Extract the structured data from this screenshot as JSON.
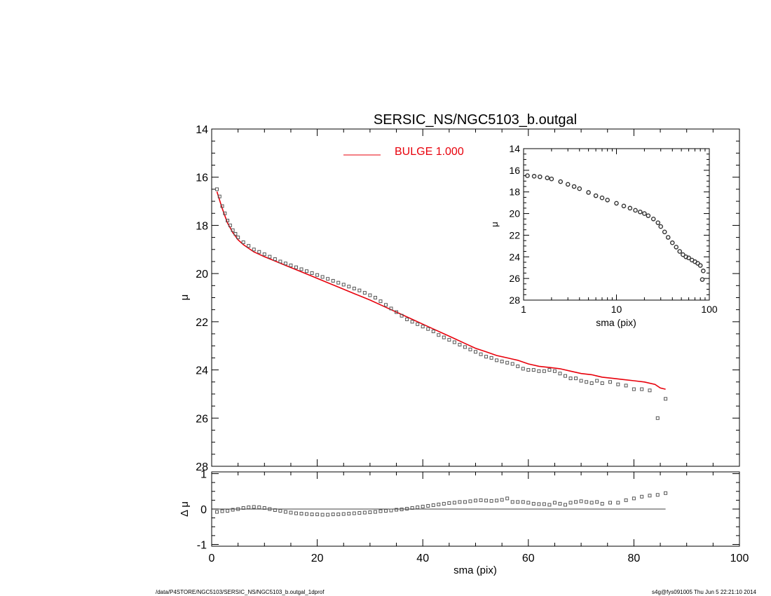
{
  "footer": {
    "path": "/data/P4STORE/NGC5103/SERSIC_NS/NGC5103_b.outgal_1dprof",
    "stamp": "s4g@fys091005  Thu Jun  5 22:21:10 2014"
  },
  "chart_data": [
    {
      "type": "scatter",
      "title": "SERSIC_NS/NGC5103_b.outgal",
      "xlabel": "",
      "ylabel": "μ",
      "xlim": [
        0,
        100
      ],
      "ylim": [
        28,
        14
      ],
      "y_ticks": [
        14,
        16,
        18,
        20,
        22,
        24,
        26,
        28
      ],
      "legend": {
        "position": "top-center",
        "label": "BULGE  1.000",
        "color": "#e8000b"
      },
      "series": [
        {
          "style": "open-square-markers",
          "color": "#555555",
          "x": [
            1.0,
            1.5,
            2.0,
            2.5,
            3.0,
            3.5,
            4.0,
            4.5,
            5.0,
            6.0,
            7.0,
            8.0,
            9.0,
            10.0,
            11.0,
            12.0,
            13.0,
            14.0,
            15.0,
            16.0,
            17.0,
            18.0,
            19.0,
            20.0,
            21.0,
            22.0,
            23.0,
            24.0,
            25.0,
            26.0,
            27.0,
            28.0,
            29.0,
            30.0,
            31.0,
            32.0,
            33.0,
            34.0,
            35.0,
            36.0,
            37.0,
            38.0,
            39.0,
            40.0,
            41.0,
            42.0,
            43.0,
            44.0,
            45.0,
            46.0,
            47.0,
            48.0,
            49.0,
            50.0,
            51.0,
            52.0,
            53.0,
            54.0,
            55.0,
            56.0,
            57.0,
            58.0,
            59.0,
            60.0,
            61.0,
            62.0,
            63.0,
            64.0,
            65.0,
            66.0,
            67.0,
            68.0,
            69.0,
            70.0,
            71.0,
            72.0,
            73.0,
            74.0,
            75.5,
            77.0,
            78.5,
            80.0,
            81.5,
            83.0,
            84.5,
            86.0
          ],
          "y": [
            16.5,
            16.8,
            17.2,
            17.5,
            17.8,
            18.0,
            18.2,
            18.35,
            18.5,
            18.7,
            18.85,
            19.0,
            19.1,
            19.2,
            19.3,
            19.4,
            19.5,
            19.58,
            19.66,
            19.74,
            19.82,
            19.9,
            19.98,
            20.06,
            20.14,
            20.22,
            20.3,
            20.38,
            20.46,
            20.54,
            20.62,
            20.7,
            20.8,
            20.9,
            21.0,
            21.15,
            21.3,
            21.45,
            21.6,
            21.75,
            21.9,
            22.0,
            22.1,
            22.2,
            22.3,
            22.4,
            22.55,
            22.65,
            22.75,
            22.85,
            22.95,
            23.05,
            23.15,
            23.25,
            23.35,
            23.45,
            23.5,
            23.6,
            23.65,
            23.7,
            23.75,
            23.85,
            23.95,
            24.0,
            24.0,
            24.05,
            24.05,
            24.0,
            24.05,
            24.15,
            24.25,
            24.35,
            24.35,
            24.45,
            24.5,
            24.55,
            24.45,
            24.55,
            24.5,
            24.6,
            24.65,
            24.8,
            24.8,
            24.85,
            26.0,
            25.2
          ]
        },
        {
          "name": "BULGE  1.000",
          "style": "line",
          "color": "#e8000b",
          "x": [
            1.0,
            1.5,
            2.0,
            2.5,
            3.0,
            3.5,
            4.0,
            4.5,
            5.0,
            6.0,
            7.0,
            8.0,
            9.0,
            10.0,
            12.0,
            14.0,
            16.0,
            18.0,
            20.0,
            22.0,
            24.0,
            26.0,
            28.0,
            30.0,
            32.0,
            34.0,
            36.0,
            38.0,
            40.0,
            42.0,
            44.0,
            46.0,
            48.0,
            50.0,
            52.0,
            54.0,
            56.0,
            57.0,
            58.0,
            60.0,
            62.0,
            64.0,
            66.0,
            68.0,
            70.0,
            72.0,
            73.0,
            74.0,
            76.0,
            78.0,
            80.0,
            82.0,
            84.0,
            85.0,
            86.0
          ],
          "y": [
            16.6,
            16.95,
            17.3,
            17.6,
            17.9,
            18.1,
            18.3,
            18.45,
            18.6,
            18.8,
            18.95,
            19.1,
            19.2,
            19.3,
            19.48,
            19.66,
            19.84,
            20.02,
            20.2,
            20.38,
            20.56,
            20.74,
            20.92,
            21.1,
            21.3,
            21.5,
            21.7,
            21.9,
            22.1,
            22.3,
            22.5,
            22.7,
            22.9,
            23.1,
            23.25,
            23.4,
            23.5,
            23.55,
            23.6,
            23.75,
            23.85,
            23.9,
            23.95,
            24.05,
            24.15,
            24.2,
            24.25,
            24.3,
            24.35,
            24.4,
            24.45,
            24.5,
            24.6,
            24.75,
            24.8
          ]
        }
      ]
    },
    {
      "type": "scatter",
      "xlabel": "sma (pix)",
      "ylabel": "Δ μ",
      "xlim": [
        0,
        100
      ],
      "ylim": [
        -1,
        1
      ],
      "x_ticks": [
        0,
        20,
        40,
        60,
        80,
        100
      ],
      "y_ticks": [
        -1,
        0,
        1
      ],
      "series": [
        {
          "style": "open-square-markers",
          "color": "#555555",
          "x": [
            1,
            2,
            3,
            4,
            5,
            6,
            7,
            8,
            9,
            10,
            11,
            12,
            13,
            14,
            15,
            16,
            17,
            18,
            19,
            20,
            21,
            22,
            23,
            24,
            25,
            26,
            27,
            28,
            29,
            30,
            31,
            32,
            33,
            34,
            35,
            36,
            37,
            38,
            39,
            40,
            41,
            42,
            43,
            44,
            45,
            46,
            47,
            48,
            49,
            50,
            51,
            52,
            53,
            54,
            55,
            56,
            57,
            58,
            59,
            60,
            61,
            62,
            63,
            64,
            65,
            66,
            67,
            68,
            69,
            70,
            71,
            72,
            73,
            74,
            75.5,
            77,
            78.5,
            80,
            81.5,
            83,
            84.5,
            86
          ],
          "y": [
            -0.08,
            -0.06,
            -0.05,
            -0.02,
            0.0,
            0.03,
            0.05,
            0.06,
            0.05,
            0.03,
            0.0,
            -0.03,
            -0.05,
            -0.08,
            -0.1,
            -0.12,
            -0.13,
            -0.14,
            -0.15,
            -0.15,
            -0.16,
            -0.16,
            -0.15,
            -0.15,
            -0.14,
            -0.13,
            -0.12,
            -0.11,
            -0.1,
            -0.09,
            -0.08,
            -0.06,
            -0.05,
            -0.04,
            -0.02,
            -0.01,
            0.01,
            0.03,
            0.05,
            0.07,
            0.09,
            0.11,
            0.13,
            0.15,
            0.17,
            0.18,
            0.2,
            0.2,
            0.22,
            0.24,
            0.25,
            0.24,
            0.23,
            0.24,
            0.26,
            0.3,
            0.2,
            0.2,
            0.2,
            0.18,
            0.15,
            0.14,
            0.14,
            0.12,
            0.18,
            0.15,
            0.12,
            0.18,
            0.2,
            0.22,
            0.2,
            0.18,
            0.2,
            0.15,
            0.18,
            0.18,
            0.25,
            0.3,
            0.35,
            0.38,
            0.4,
            0.45
          ]
        }
      ],
      "reference_line": {
        "y": 0,
        "x_range": [
          0,
          86
        ]
      }
    },
    {
      "type": "scatter",
      "xlabel": "sma (pix)",
      "ylabel": "μ",
      "x_scale": "log",
      "xlim": [
        1,
        100
      ],
      "ylim": [
        28,
        14
      ],
      "x_ticks": [
        1,
        10,
        100
      ],
      "y_ticks": [
        14,
        16,
        18,
        20,
        22,
        24,
        26,
        28
      ],
      "position": "inset-top-right",
      "series": [
        {
          "style": "open-circle-markers",
          "color": "#333333",
          "x": [
            1.1,
            1.3,
            1.5,
            1.8,
            2.0,
            2.5,
            3.0,
            3.5,
            4.0,
            5.0,
            6.0,
            7.0,
            8.0,
            10.0,
            12.0,
            14.0,
            16.0,
            18.0,
            20.0,
            22.0,
            25.0,
            28.0,
            30.0,
            33.0,
            36.0,
            40.0,
            44.0,
            48.0,
            52.0,
            56.0,
            60.0,
            65.0,
            70.0,
            75.0,
            80.0,
            84.0,
            86.0
          ],
          "y": [
            16.5,
            16.55,
            16.6,
            16.7,
            16.8,
            17.05,
            17.3,
            17.5,
            17.7,
            18.05,
            18.35,
            18.55,
            18.75,
            19.05,
            19.3,
            19.5,
            19.7,
            19.85,
            20.0,
            20.2,
            20.5,
            20.85,
            21.2,
            21.7,
            22.2,
            22.7,
            23.1,
            23.5,
            23.8,
            24.0,
            24.1,
            24.3,
            24.45,
            24.6,
            24.8,
            26.1,
            25.3
          ]
        }
      ]
    }
  ]
}
